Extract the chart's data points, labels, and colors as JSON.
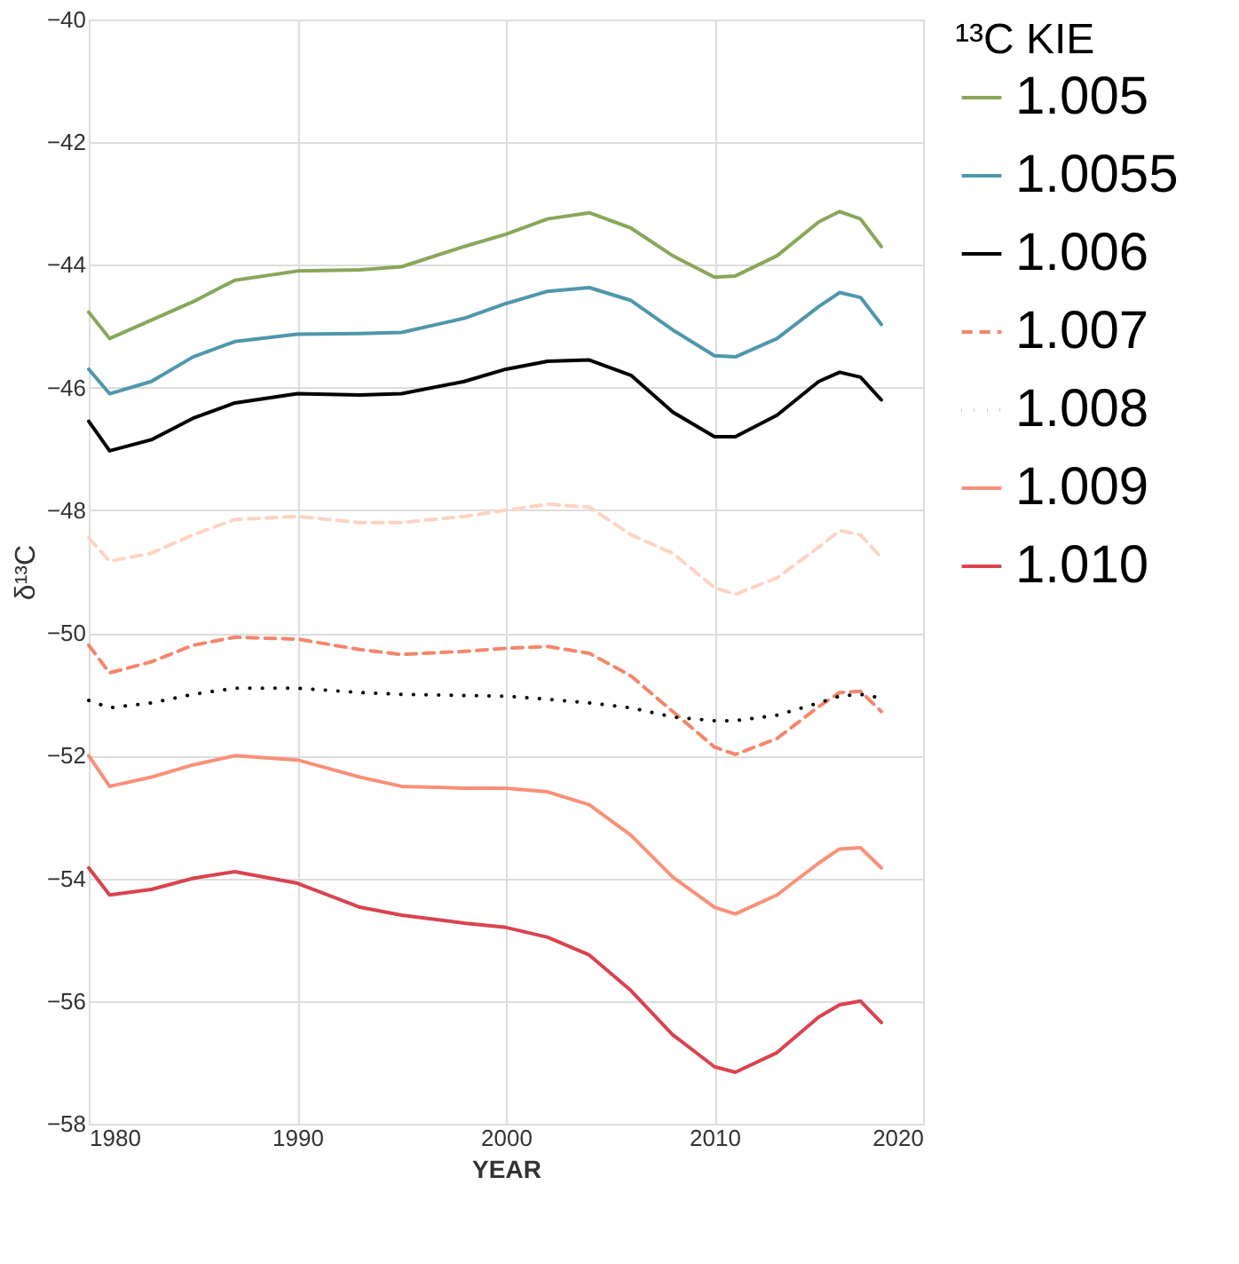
{
  "chart_data": {
    "type": "line",
    "xlabel": "YEAR",
    "ylabel": "δ¹³C",
    "legend_title": "¹³C KIE",
    "x": [
      1980,
      1981,
      1983,
      1985,
      1987,
      1990,
      1993,
      1995,
      1998,
      2000,
      2002,
      2004,
      2006,
      2008,
      2010,
      2011,
      2013,
      2015,
      2016,
      2017,
      2018
    ],
    "series": [
      {
        "name": "1.005",
        "color": "#8aa65a",
        "line_style": "solid",
        "values": [
          -44.77,
          -45.2,
          -44.9,
          -44.6,
          -44.25,
          -44.1,
          -44.08,
          -44.03,
          -43.7,
          -43.5,
          -43.25,
          -43.15,
          -43.4,
          -43.85,
          -44.2,
          -44.18,
          -43.85,
          -43.3,
          -43.13,
          -43.25,
          -43.7
        ]
      },
      {
        "name": "1.0055",
        "color": "#4f97aa",
        "line_style": "solid",
        "values": [
          -45.7,
          -46.1,
          -45.9,
          -45.5,
          -45.25,
          -45.13,
          -45.12,
          -45.1,
          -44.87,
          -44.63,
          -44.43,
          -44.37,
          -44.58,
          -45.06,
          -45.48,
          -45.5,
          -45.2,
          -44.68,
          -44.45,
          -44.53,
          -44.97
        ]
      },
      {
        "name": "1.006",
        "color": "#000000",
        "line_style": "solid",
        "values": [
          -46.55,
          -47.03,
          -46.85,
          -46.5,
          -46.25,
          -46.1,
          -46.12,
          -46.1,
          -45.9,
          -45.7,
          -45.57,
          -45.55,
          -45.8,
          -46.4,
          -46.8,
          -46.8,
          -46.45,
          -45.9,
          -45.75,
          -45.83,
          -46.2
        ]
      },
      {
        "color": "#fdd3c1",
        "line_style": "dashed",
        "values": [
          -48.45,
          -48.83,
          -48.7,
          -48.4,
          -48.15,
          -48.1,
          -48.2,
          -48.2,
          -48.1,
          -48.0,
          -47.9,
          -47.95,
          -48.4,
          -48.7,
          -49.26,
          -49.37,
          -49.1,
          -48.6,
          -48.33,
          -48.4,
          -48.77
        ]
      },
      {
        "name": "1.007",
        "color": "#f4866c",
        "line_style": "dashed",
        "values": [
          -50.2,
          -50.65,
          -50.47,
          -50.2,
          -50.07,
          -50.1,
          -50.27,
          -50.35,
          -50.3,
          -50.25,
          -50.22,
          -50.33,
          -50.7,
          -51.28,
          -51.86,
          -51.98,
          -51.72,
          -51.2,
          -50.97,
          -50.95,
          -51.28
        ]
      },
      {
        "name": "1.008",
        "color": "#000000",
        "line_style": "dotted",
        "values": [
          -51.1,
          -51.22,
          -51.14,
          -51.0,
          -50.9,
          -50.9,
          -50.97,
          -51.0,
          -51.02,
          -51.03,
          -51.08,
          -51.14,
          -51.22,
          -51.37,
          -51.43,
          -51.43,
          -51.34,
          -51.14,
          -51.03,
          -51.0,
          -51.06
        ]
      },
      {
        "name": "1.009",
        "color": "#f99078",
        "line_style": "solid",
        "values": [
          -52.0,
          -52.5,
          -52.35,
          -52.15,
          -52.0,
          -52.07,
          -52.35,
          -52.5,
          -52.53,
          -52.53,
          -52.59,
          -52.8,
          -53.3,
          -53.98,
          -54.47,
          -54.58,
          -54.27,
          -53.75,
          -53.52,
          -53.5,
          -53.83
        ]
      },
      {
        "name": "1.010",
        "color": "#d9434f",
        "line_style": "solid",
        "values": [
          -53.83,
          -54.27,
          -54.18,
          -54.0,
          -53.89,
          -54.08,
          -54.47,
          -54.6,
          -54.73,
          -54.8,
          -54.96,
          -55.25,
          -55.83,
          -56.55,
          -57.07,
          -57.16,
          -56.84,
          -56.26,
          -56.06,
          -56.0,
          -56.35
        ]
      }
    ],
    "xlim": [
      1980,
      2020
    ],
    "xticks": [
      1980,
      1990,
      2000,
      2010,
      2020
    ],
    "ylim": [
      -58,
      -40
    ],
    "yticks": [
      -58,
      -56,
      -54,
      -52,
      -50,
      -48,
      -46,
      -44,
      -42,
      -40
    ],
    "grid": true,
    "legend": "right",
    "marker": "none"
  }
}
